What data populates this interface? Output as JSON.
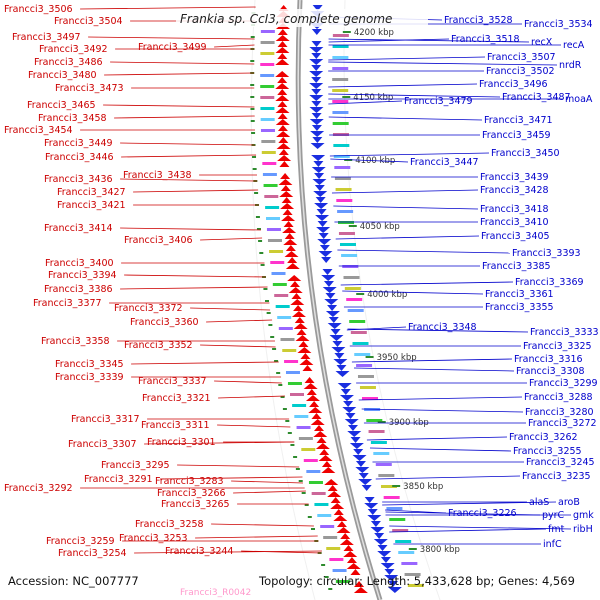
{
  "title": "Frankia sp. CcI3, complete genome",
  "footer": {
    "accession": "Accession: NC_007777",
    "summary": "Topology: circular; Length: 5,433,628 bp; Genes: 4,569",
    "ghost_label": "Francci3_R0042"
  },
  "colors": {
    "reverse_strand": "#ee0000",
    "forward_strand": "#1a2ee0",
    "left_label": "#cc0000",
    "right_label": "#0000cc",
    "backbone": "#888888",
    "tick": "#2e8b2e"
  },
  "ticks": [
    "4200 kbp",
    "4150 kbp",
    "4100 kbp",
    "4050 kbp",
    "4000 kbp",
    "3950 kbp",
    "3900 kbp",
    "3850 kbp",
    "3800 kbp"
  ],
  "left_labels": [
    "Francci3_3506",
    "Francci3_3504",
    "Francci3_3497",
    "Francci3_3499",
    "Francci3_3492",
    "Francci3_3486",
    "Francci3_3480",
    "Francci3_3473",
    "Francci3_3465",
    "Francci3_3458",
    "Francci3_3454",
    "Francci3_3449",
    "Francci3_3446",
    "Francci3_3438",
    "Francci3_3436",
    "Francci3_3427",
    "Francci3_3421",
    "Francci3_3414",
    "Francci3_3406",
    "Francci3_3400",
    "Francci3_3394",
    "Francci3_3386",
    "Francci3_3377",
    "Francci3_3372",
    "Francci3_3360",
    "Francci3_3358",
    "Francci3_3352",
    "Francci3_3345",
    "Francci3_3339",
    "Francci3_3337",
    "Francci3_3321",
    "Francci3_3317",
    "Francci3_3311",
    "Francci3_3307",
    "Francci3_3301",
    "Francci3_3295",
    "Francci3_3291",
    "Francci3_3292",
    "Francci3_3283",
    "Francci3_3266",
    "Francci3_3265",
    "Francci3_3258",
    "Francci3_3253",
    "Francci3_3259",
    "Francci3_3244",
    "Francci3_3254"
  ],
  "right_labels": [
    "Francci3_3528",
    "Francci3_3534",
    "Francci3_3518",
    "recX",
    "recA",
    "Francci3_3507",
    "nrdR",
    "Francci3_3502",
    "Francci3_3496",
    "Francci3_3487",
    "moaA",
    "Francci3_3479",
    "Francci3_3471",
    "Francci3_3459",
    "Francci3_3450",
    "Francci3_3447",
    "Francci3_3439",
    "Francci3_3428",
    "Francci3_3418",
    "Francci3_3410",
    "Francci3_3405",
    "Francci3_3393",
    "Francci3_3385",
    "Francci3_3369",
    "Francci3_3361",
    "Francci3_3355",
    "Francci3_3348",
    "Francci3_3333",
    "Francci3_3325",
    "Francci3_3316",
    "Francci3_3308",
    "Francci3_3299",
    "Francci3_3288",
    "Francci3_3280",
    "Francci3_3272",
    "Francci3_3262",
    "Francci3_3255",
    "Francci3_3245",
    "Francci3_3235",
    "Francci3_3226",
    "alaS",
    "aroB",
    "pyrC",
    "gmk",
    "fmt",
    "ribH",
    "infC"
  ]
}
